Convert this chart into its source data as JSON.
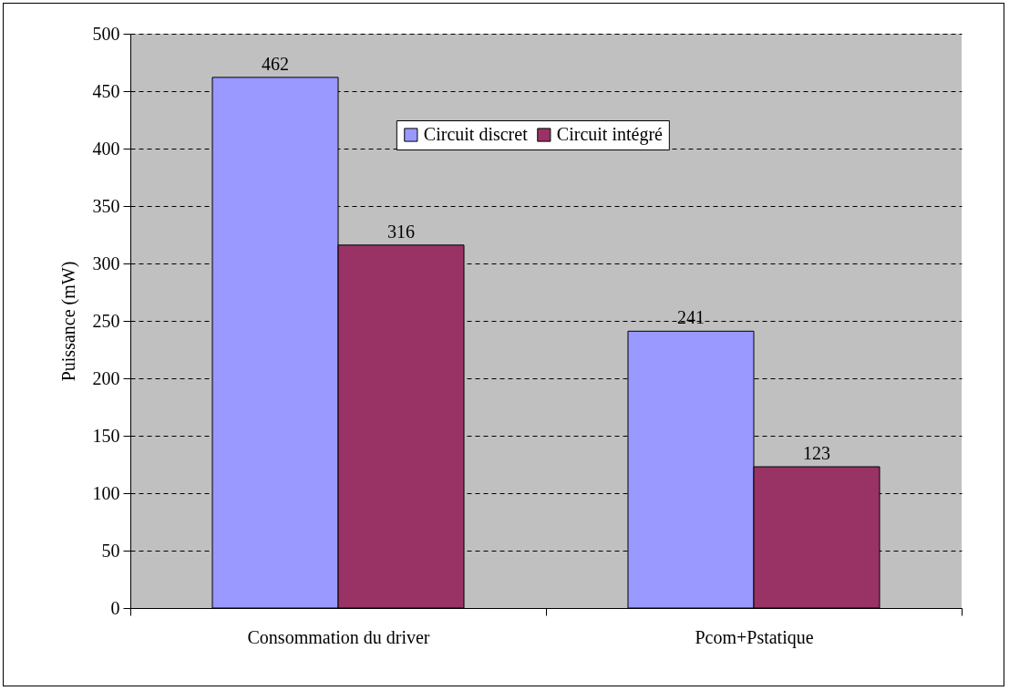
{
  "chart_data": {
    "type": "bar",
    "ylabel": "Puissance (mW)",
    "categories": [
      "Consommation du driver",
      "Pcom+Pstatique"
    ],
    "series": [
      {
        "name": "Circuit discret",
        "color": "#9999ff",
        "values": [
          462,
          241
        ]
      },
      {
        "name": "Circuit intégré",
        "color": "#993366",
        "values": [
          316,
          123
        ]
      }
    ],
    "ylim": [
      0,
      500
    ],
    "yticks": [
      0,
      50,
      100,
      150,
      200,
      250,
      300,
      350,
      400,
      450,
      500
    ],
    "grid": "y",
    "legend": "top",
    "data_labels": true
  }
}
